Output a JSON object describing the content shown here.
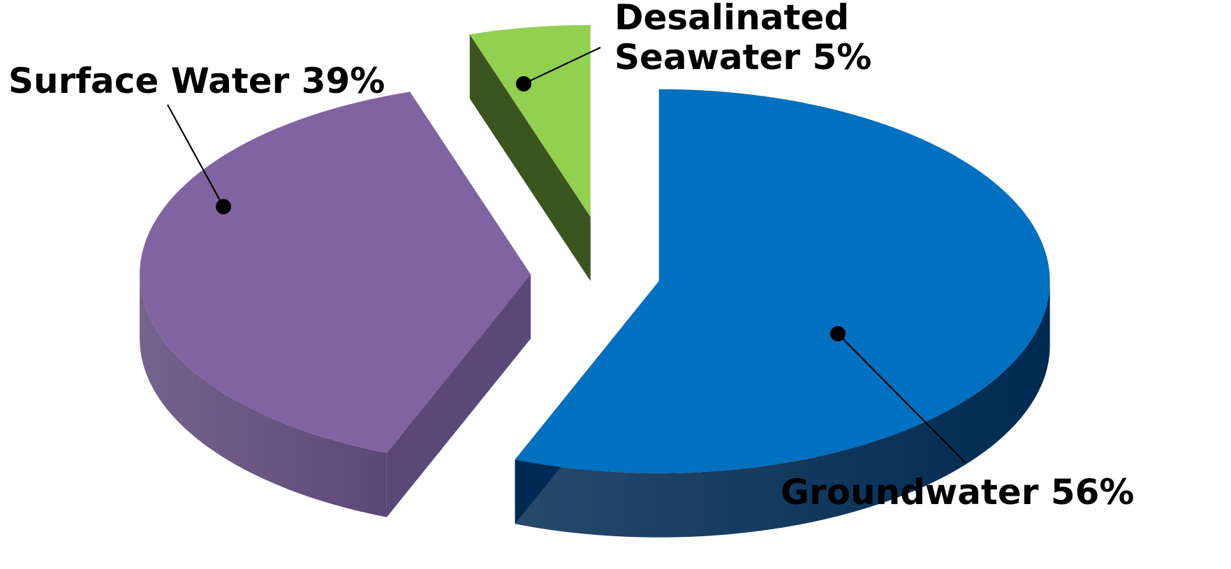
{
  "chart_data": {
    "type": "pie",
    "style": "3d-exploded",
    "title": "",
    "legend": "none",
    "slices": [
      {
        "label_lines": [
          "Groundwater 56%"
        ],
        "value": 56,
        "color": "#0070C0",
        "side_color": "#002A52"
      },
      {
        "label_lines": [
          "Surface Water 39%"
        ],
        "value": 39,
        "color": "#8064A2",
        "side_color": "#5C4878"
      },
      {
        "label_lines": [
          "Desalinated",
          "Seawater 5%"
        ],
        "value": 5,
        "color": "#92D050",
        "side_color": "#3A5520"
      }
    ]
  }
}
